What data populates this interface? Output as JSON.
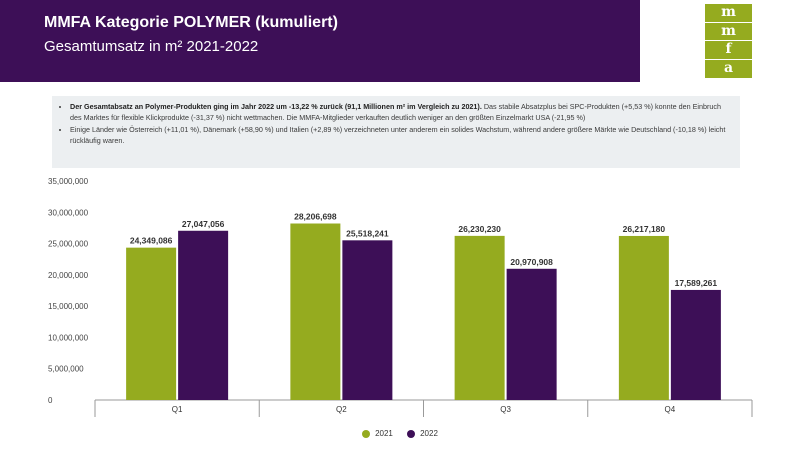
{
  "header": {
    "title": "MMFA Kategorie POLYMER (kumuliert)",
    "subtitle": "Gesamtumsatz in m² 2021-2022"
  },
  "logo": {
    "letters": [
      "m",
      "m",
      "f",
      "a"
    ]
  },
  "info": {
    "bullet1_bold": "Der Gesamtabsatz an Polymer-Produkten ging im Jahr 2022 um -13,22 % zurück (91,1 Millionen m² im Vergleich zu 2021).",
    "bullet1_rest": " Das stabile Absatzplus bei SPC-Produkten (+5,53 %) konnte den Einbruch des Marktes für flexible Klickprodukte (-31,37 %) nicht wettmachen. Die MMFA-Mitglieder verkauften deutlich weniger an den größten Einzelmarkt USA (-21,95 %)",
    "bullet2": "Einige Länder wie Österreich (+11,01 %), Dänemark (+58,90 %) und Italien (+2,89 %) verzeichneten unter anderem ein solides Wachstum, während andere größere Märkte wie Deutschland (-10,18 %) leicht rückläufig waren."
  },
  "colors": {
    "series2021": "#95ab1f",
    "series2022": "#3d0f57",
    "header": "#3d0f57"
  },
  "chart_data": {
    "type": "bar",
    "categories": [
      "Q1",
      "Q2",
      "Q3",
      "Q4"
    ],
    "series": [
      {
        "name": "2021",
        "values": [
          24349086,
          28206698,
          26230230,
          26217180
        ],
        "labels": [
          "24,349,086",
          "28,206,698",
          "26,230,230",
          "26,217,180"
        ]
      },
      {
        "name": "2022",
        "values": [
          27047056,
          25518241,
          20970908,
          17589261
        ],
        "labels": [
          "27,047,056",
          "25,518,241",
          "20,970,908",
          "17,589,261"
        ]
      }
    ],
    "ylim": [
      0,
      35000000
    ],
    "yticks": [
      "0",
      "5,000,000",
      "10,000,000",
      "15,000,000",
      "20,000,000",
      "25,000,000",
      "30,000,000",
      "35,000,000"
    ],
    "grid": false,
    "legend_position": "bottom"
  }
}
